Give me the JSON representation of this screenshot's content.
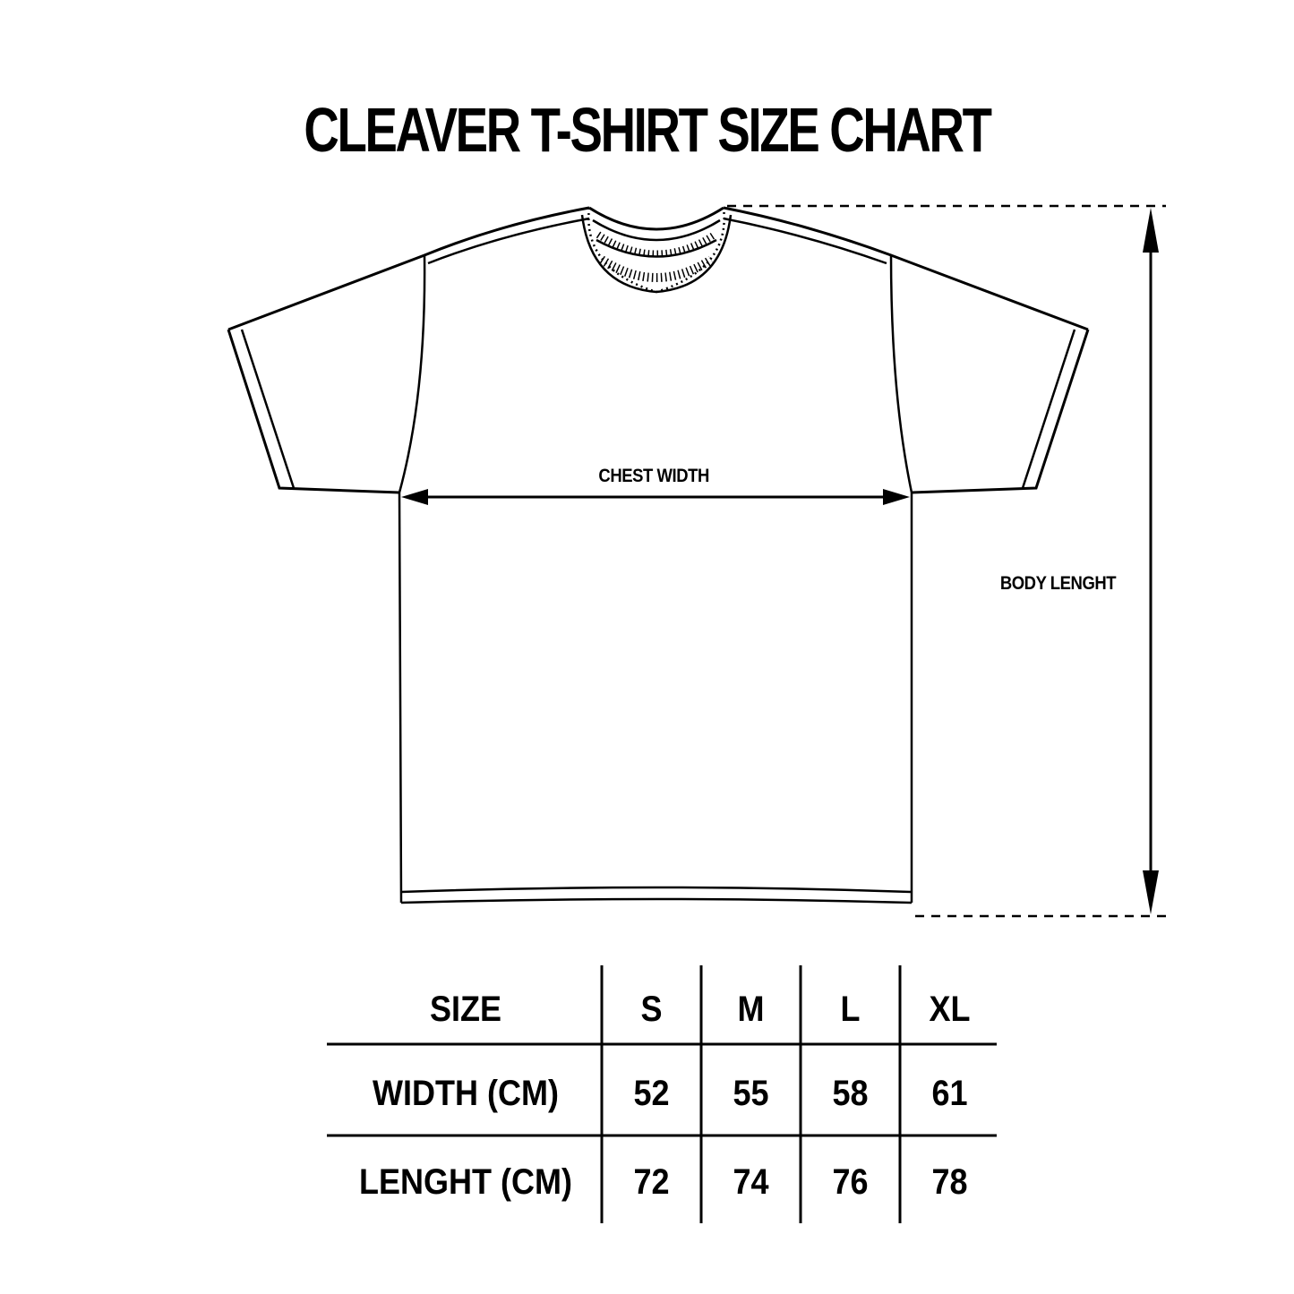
{
  "title": "CLEAVER T-SHIRT SIZE CHART",
  "diagram": {
    "chest_label": "CHEST WIDTH",
    "length_label": "BODY LENGHT"
  },
  "table": {
    "header": [
      "SIZE",
      "S",
      "M",
      "L",
      "XL"
    ],
    "rows": [
      [
        "WIDTH (CM)",
        "52",
        "55",
        "58",
        "61"
      ],
      [
        "LENGHT (CM)",
        "72",
        "74",
        "76",
        "78"
      ]
    ]
  }
}
